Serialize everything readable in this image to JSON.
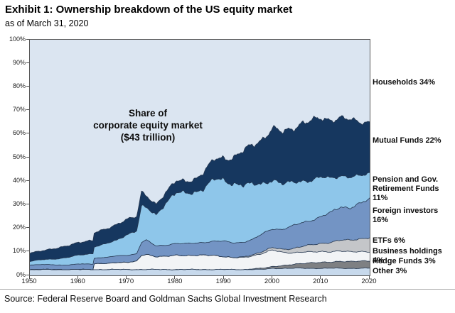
{
  "header": {
    "title": "Exhibit 1: Ownership breakdown of the US equity market",
    "subtitle": "as of March 31, 2020"
  },
  "source": "Source: Federal Reserve Board and Goldman Sachs Global Investment Research",
  "chart_data": {
    "type": "area",
    "stacked": true,
    "title": "Ownership breakdown of the US equity market",
    "annotation": "Share of\ncorporate equity market\n($43 trillion)",
    "xlabel": "",
    "ylabel": "",
    "xlim": [
      1950,
      2020
    ],
    "ylim": [
      0,
      100
    ],
    "grid": false,
    "x_ticks": [
      1950,
      1960,
      1970,
      1980,
      1990,
      2000,
      2010,
      2020
    ],
    "y_ticks": [
      "0%",
      "10%",
      "20%",
      "30%",
      "40%",
      "50%",
      "60%",
      "70%",
      "80%",
      "90%",
      "100%"
    ],
    "background_series": {
      "name": "Households",
      "label": "Households 34%",
      "share_2020": 34,
      "color": "#dbe5f1"
    },
    "x": [
      1950,
      1952,
      1954,
      1956,
      1958,
      1960,
      1962,
      1963,
      1963.2,
      1964,
      1966,
      1968,
      1970,
      1972,
      1973,
      1974,
      1976,
      1978,
      1980,
      1982,
      1984,
      1986,
      1988,
      1990,
      1992,
      1994,
      1996,
      1998,
      2000,
      2002,
      2004,
      2006,
      2008,
      2010,
      2012,
      2014,
      2016,
      2018,
      2020
    ],
    "series": [
      {
        "name": "Other",
        "label": "Other 3%",
        "share_2020": 3,
        "color": "#c7d9ec",
        "values": [
          2.5,
          2.5,
          2.5,
          2.5,
          2.5,
          2.5,
          2.5,
          2.5,
          2.5,
          2.5,
          2.5,
          2.5,
          2.5,
          2.5,
          2.5,
          2.5,
          2.5,
          2.5,
          2.5,
          2.5,
          2.5,
          2.5,
          2.5,
          2.5,
          2.5,
          2.5,
          2.5,
          2.5,
          3,
          3,
          3,
          3,
          3,
          3,
          3,
          3,
          3,
          3,
          3
        ]
      },
      {
        "name": "Hedge Funds",
        "label": "Hedge Funds 3%",
        "share_2020": 3,
        "color": "#7e8083",
        "values": [
          0,
          0,
          0,
          0,
          0,
          0,
          0,
          0,
          0,
          0,
          0,
          0,
          0,
          0,
          0,
          0,
          0,
          0,
          0,
          0,
          0,
          0,
          0,
          0,
          0,
          0,
          0.3,
          0.5,
          0.8,
          1.2,
          1.5,
          2,
          2.5,
          2.5,
          2.5,
          3,
          3,
          3,
          3
        ]
      },
      {
        "name": "Business holdings",
        "label": "Business holdings 4%",
        "share_2020": 4,
        "color": "#f2f4f6",
        "values": [
          0,
          0,
          0,
          0,
          0,
          0,
          0,
          0,
          2.3,
          2.5,
          2.6,
          3,
          3,
          3.5,
          6,
          6.5,
          5.5,
          5.5,
          6,
          6,
          6,
          6,
          6,
          5.5,
          5,
          5,
          5.5,
          6.5,
          7,
          5.5,
          5,
          5,
          4.5,
          4.5,
          4.5,
          4.5,
          4,
          4,
          4
        ]
      },
      {
        "name": "ETFs",
        "label": "ETFs 6%",
        "share_2020": 6,
        "color": "#c4c6c9",
        "values": [
          0,
          0,
          0,
          0,
          0,
          0,
          0,
          0,
          0,
          0,
          0,
          0,
          0,
          0,
          0,
          0,
          0,
          0,
          0,
          0,
          0,
          0,
          0,
          0,
          0,
          0.3,
          0.5,
          0.8,
          1,
          1.3,
          1.8,
          2.3,
          3,
          3.5,
          4,
          4.5,
          5,
          5.5,
          6
        ]
      },
      {
        "name": "Foreign investors",
        "label": "Foreign investors 16%",
        "share_2020": 16,
        "color": "#7394c4",
        "values": [
          2,
          2,
          2,
          2,
          2,
          2.2,
          2.3,
          2.3,
          2.4,
          2.5,
          2.6,
          2.8,
          3,
          3.2,
          5.5,
          6,
          4.5,
          4.8,
          5,
          5,
          5.2,
          5.5,
          6,
          6.5,
          6.3,
          6.3,
          6.5,
          7.5,
          8,
          8.5,
          9.5,
          10,
          10.5,
          11.5,
          12.5,
          14,
          14,
          15,
          16
        ]
      },
      {
        "name": "Pension and Gov. Retirement Funds",
        "label": "Pension and Gov.\nRetirement Funds 11%",
        "share_2020": 11,
        "color": "#8ec6ea",
        "values": [
          1.5,
          2,
          2.3,
          2.7,
          3.2,
          3.8,
          4.3,
          4.5,
          5,
          5,
          5.8,
          6.8,
          9,
          9.5,
          15,
          13.5,
          13.5,
          18,
          21,
          21.5,
          22,
          23,
          26,
          26,
          25.5,
          24,
          23,
          21.5,
          21,
          19,
          18.5,
          18,
          17,
          16.5,
          14.5,
          13.5,
          13,
          11.5,
          11
        ]
      },
      {
        "name": "Mutual Funds",
        "label": "Mutual Funds 22%",
        "share_2020": 22,
        "color": "#16375f",
        "values": [
          3.5,
          3.8,
          4.2,
          4.5,
          5,
          5.5,
          5.5,
          5.5,
          5.8,
          6,
          6.3,
          6.8,
          6.5,
          6,
          6,
          5,
          4.5,
          4.5,
          5,
          5,
          5.5,
          7,
          8.5,
          9.5,
          11,
          14.5,
          17,
          19,
          21.5,
          22,
          23,
          24.5,
          25,
          25,
          25,
          24.5,
          24,
          23,
          22
        ]
      }
    ],
    "legend": [
      {
        "label": "Households 34%"
      },
      {
        "label": "Mutual Funds 22%"
      },
      {
        "label": "Pension and Gov.\nRetirement Funds 11%"
      },
      {
        "label": "Foreign investors 16%"
      },
      {
        "label": "ETFs 6%"
      },
      {
        "label": "Business holdings 4%"
      },
      {
        "label": "Hedge Funds 3%"
      },
      {
        "label": "Other 3%"
      }
    ],
    "legend_position": "right",
    "line_color": "#24364f"
  }
}
